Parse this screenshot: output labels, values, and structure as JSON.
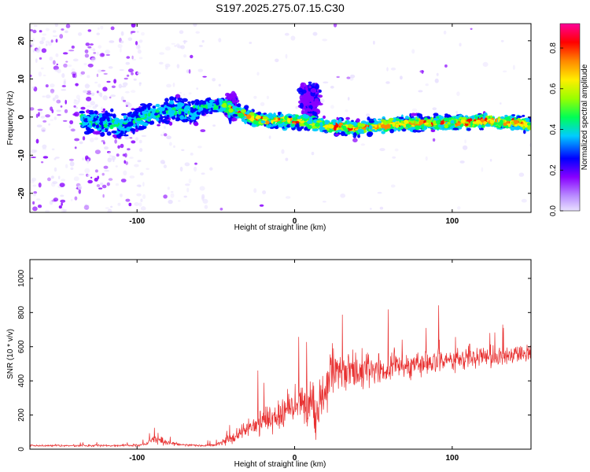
{
  "chart_data": [
    {
      "type": "heatmap",
      "title": "S197.2025.275.07.15.C30",
      "xlabel": "Height of straight line (km)",
      "ylabel": "Frequency (Hz)",
      "xlim": [
        -168,
        150
      ],
      "ylim": [
        -25,
        24.5
      ],
      "xticks": [
        -100,
        0,
        100
      ],
      "xtick_labels": [
        "-100",
        "0",
        "100"
      ],
      "yticks": [
        -20,
        -10,
        0,
        10,
        20
      ],
      "ytick_labels": [
        "-20",
        "-10",
        "0",
        "10",
        "20"
      ],
      "colorbar": {
        "label": "Normalized spectral amplitude",
        "range": [
          0.0,
          0.92
        ],
        "ticks": [
          0.0,
          0.2,
          0.4,
          0.6,
          0.8
        ],
        "tick_labels": [
          "0.0",
          "0.2",
          "0.4",
          "0.6",
          "0.8"
        ],
        "colors": [
          "#e9e1ff",
          "#8800ff",
          "#0000ff",
          "#00ccff",
          "#00ff55",
          "#99ff00",
          "#ffee00",
          "#ff8800",
          "#ff0000",
          "#ff0099"
        ]
      },
      "ridge": {
        "x": [
          -130,
          -110,
          -95,
          -80,
          -65,
          -55,
          -45,
          -35,
          -25,
          -15,
          -5,
          5,
          15,
          25,
          40,
          60,
          80,
          100,
          120,
          140,
          150
        ],
        "y": [
          -1,
          -2,
          0,
          2,
          1,
          3,
          3,
          1,
          -0.5,
          -1,
          -1,
          -1,
          -2,
          -2.5,
          -3,
          -2,
          -1.5,
          -1.5,
          -1,
          -1.5,
          -2
        ]
      },
      "features": [
        {
          "x": 10,
          "y": 8,
          "spread": 8
        },
        {
          "x": -40,
          "y": 5,
          "spread": 4
        }
      ]
    },
    {
      "type": "line",
      "xlabel": "Height of straight line (km)",
      "ylabel": "SNR (10 * v/v)",
      "xlim": [
        -168,
        150
      ],
      "ylim": [
        0,
        1110
      ],
      "xticks": [
        -100,
        0,
        100
      ],
      "xtick_labels": [
        "-100",
        "0",
        "100"
      ],
      "yticks": [
        0,
        200,
        400,
        600,
        800,
        1000
      ],
      "ytick_labels": [
        "0",
        "200",
        "400",
        "600",
        "800",
        "1000"
      ],
      "color": "#e83030",
      "envelope": {
        "x": [
          -168,
          -100,
          -95,
          -88,
          -80,
          -70,
          -60,
          -50,
          -40,
          -30,
          -20,
          -10,
          0,
          10,
          15,
          20,
          25,
          30,
          40,
          60,
          80,
          100,
          120,
          150
        ],
        "base": [
          20,
          22,
          30,
          60,
          35,
          25,
          20,
          25,
          60,
          120,
          180,
          200,
          250,
          300,
          200,
          400,
          480,
          470,
          450,
          480,
          500,
          520,
          540,
          560
        ],
        "noise": [
          10,
          10,
          15,
          50,
          20,
          10,
          10,
          15,
          60,
          110,
          150,
          150,
          170,
          220,
          250,
          250,
          260,
          200,
          180,
          160,
          140,
          120,
          100,
          80
        ]
      }
    }
  ]
}
